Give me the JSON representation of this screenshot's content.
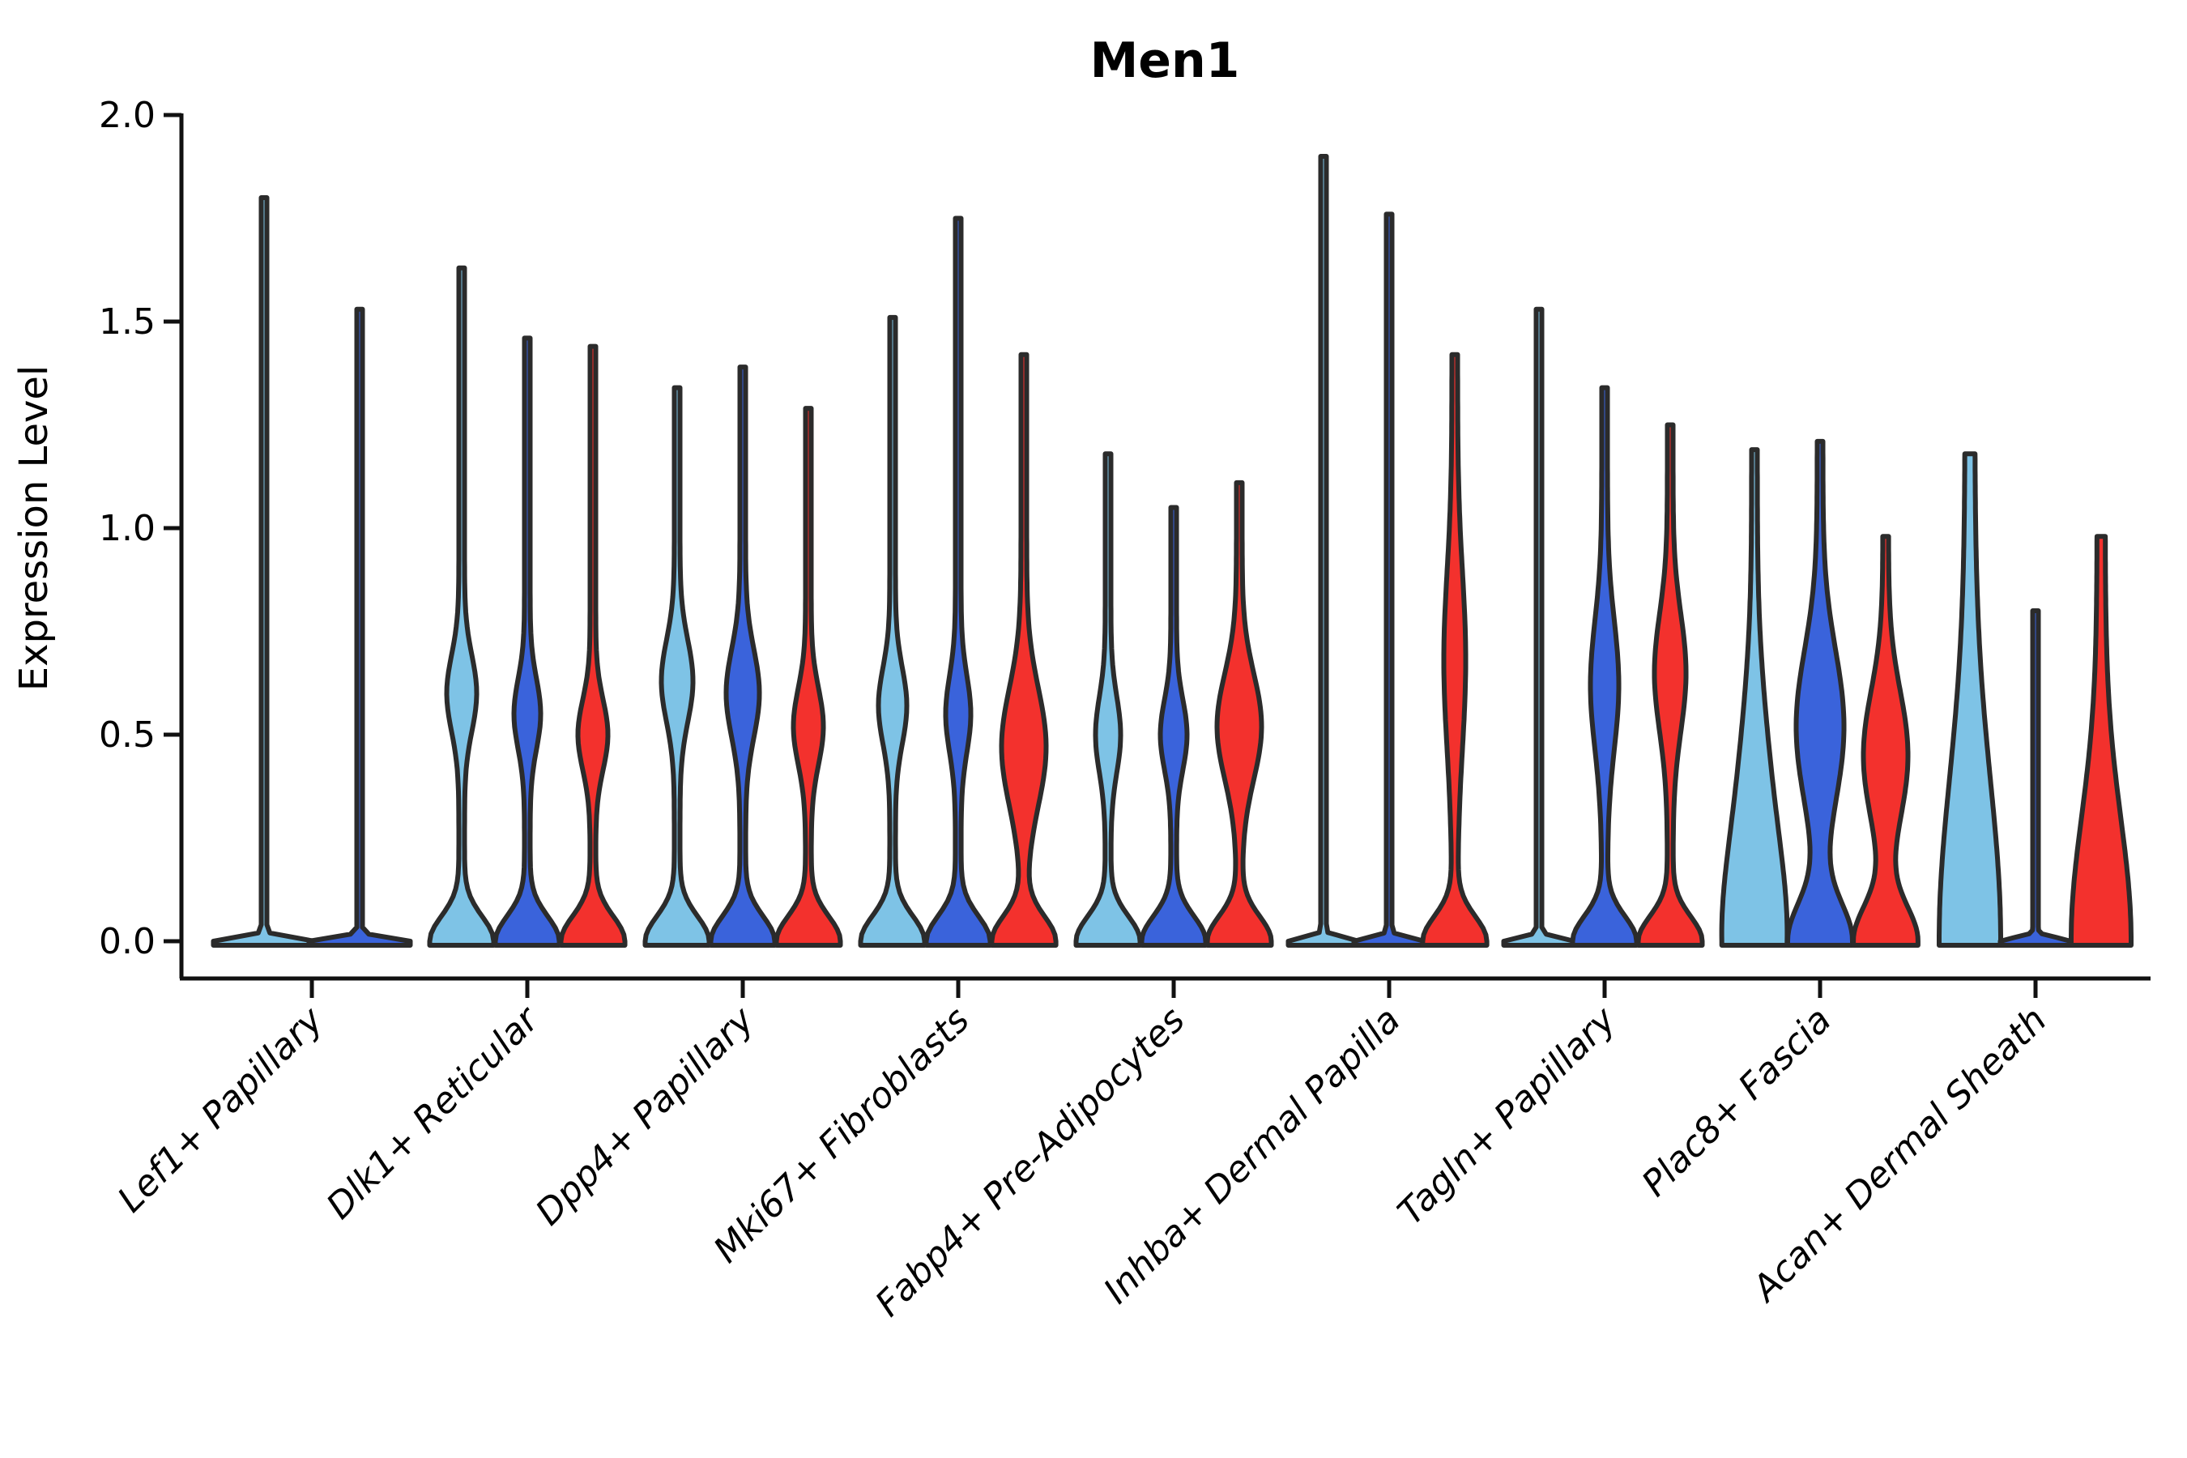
{
  "title": "Men1",
  "chart_data": {
    "type": "violin",
    "title": "Men1",
    "xlabel": "",
    "ylabel": "Expression Level",
    "ylim": [
      0.0,
      2.0
    ],
    "y_ticks": [
      "0.0",
      "0.5",
      "1.0",
      "1.5",
      "2.0"
    ],
    "grid": false,
    "legend": "none",
    "categories": [
      "Lef1+ Papillary",
      "Dlk1+ Reticular",
      "Dpp4+ Papillary",
      "Mki67+ Fibroblasts",
      "Fabp4+ Pre-Adipocytes",
      "Inhba+ Dermal Papilla",
      "Tagln+ Papillary",
      "Plac8+ Fascia",
      "Acan+ Dermal Sheath"
    ],
    "series": [
      {
        "name": "light-blue",
        "color": "#7EC3E6"
      },
      {
        "name": "dark-blue",
        "color": "#3A63DB"
      },
      {
        "name": "red",
        "color": "#F3312D"
      }
    ],
    "violins": [
      {
        "category": "Lef1+ Papillary",
        "cells": [
          {
            "series": 0,
            "max": 1.8,
            "flat": true,
            "base_hw": 59,
            "offset": -59
          },
          {
            "series": 1,
            "max": 1.53,
            "flat": true,
            "base_hw": 59,
            "offset": 59
          }
        ]
      },
      {
        "category": "Dlk1+ Reticular",
        "cells": [
          {
            "series": 0,
            "max": 1.63,
            "bulge": [
              0.6,
              15,
              0.13
            ]
          },
          {
            "series": 1,
            "max": 1.46,
            "bulge": [
              0.55,
              13,
              0.12
            ]
          },
          {
            "series": 2,
            "max": 1.44,
            "bulge": [
              0.5,
              15,
              0.12
            ]
          }
        ]
      },
      {
        "category": "Dpp4+ Papillary",
        "cells": [
          {
            "series": 0,
            "max": 1.34,
            "bulge": [
              0.63,
              16,
              0.14
            ]
          },
          {
            "series": 1,
            "max": 1.39,
            "bulge": [
              0.6,
              17,
              0.15
            ]
          },
          {
            "series": 2,
            "max": 1.29,
            "bulge": [
              0.52,
              15,
              0.13
            ]
          }
        ]
      },
      {
        "category": "Mki67+ Fibroblasts",
        "cells": [
          {
            "series": 0,
            "max": 1.51,
            "bulge": [
              0.57,
              14,
              0.13
            ]
          },
          {
            "series": 1,
            "max": 1.75,
            "bulge": [
              0.55,
              12,
              0.13
            ]
          },
          {
            "series": 2,
            "max": 1.42,
            "bulge": [
              0.47,
              24,
              0.2
            ]
          }
        ]
      },
      {
        "category": "Fabp4+ Pre-Adipocytes",
        "cells": [
          {
            "series": 0,
            "max": 1.18,
            "bulge": [
              0.5,
              12,
              0.13
            ]
          },
          {
            "series": 1,
            "max": 1.05,
            "bulge": [
              0.5,
              13,
              0.12
            ]
          },
          {
            "series": 2,
            "max": 1.11,
            "bulge": [
              0.52,
              24,
              0.18
            ]
          }
        ]
      },
      {
        "category": "Inhba+ Dermal Papilla",
        "cells": [
          {
            "series": 0,
            "max": 1.9,
            "flat": true
          },
          {
            "series": 1,
            "max": 1.76,
            "flat": true
          },
          {
            "series": 2,
            "max": 1.42,
            "bulge": [
              0.68,
              10,
              0.3
            ]
          }
        ]
      },
      {
        "category": "Tagln+ Papillary",
        "cells": [
          {
            "series": 0,
            "max": 1.53,
            "flat": true
          },
          {
            "series": 1,
            "max": 1.34,
            "bulge": [
              0.62,
              14,
              0.22
            ]
          },
          {
            "series": 2,
            "max": 1.25,
            "bulge": [
              0.65,
              16,
              0.2
            ]
          }
        ]
      },
      {
        "category": "Plac8+ Fascia",
        "cells": [
          {
            "series": 0,
            "max": 1.19,
            "base_s": 0.36,
            "bulge": [
              0.45,
              8,
              0.3
            ]
          },
          {
            "series": 1,
            "max": 1.21,
            "base_s": 0.13,
            "bulge": [
              0.52,
              26,
              0.26
            ]
          },
          {
            "series": 2,
            "max": 0.98,
            "base_s": 0.12,
            "bulge": [
              0.45,
              24,
              0.22
            ]
          }
        ]
      },
      {
        "category": "Acan+ Dermal Sheath",
        "cells": [
          {
            "series": 0,
            "max": 1.18,
            "base_hw": 0,
            "spike_hw": 6,
            "bulge": [
              0.0,
              32,
              0.55
            ]
          },
          {
            "series": 1,
            "max": 0.8,
            "flat": true
          },
          {
            "series": 2,
            "max": 0.98,
            "base_hw": 0,
            "spike_hw": 5,
            "bulge": [
              0.0,
              32,
              0.42
            ]
          }
        ]
      }
    ]
  }
}
